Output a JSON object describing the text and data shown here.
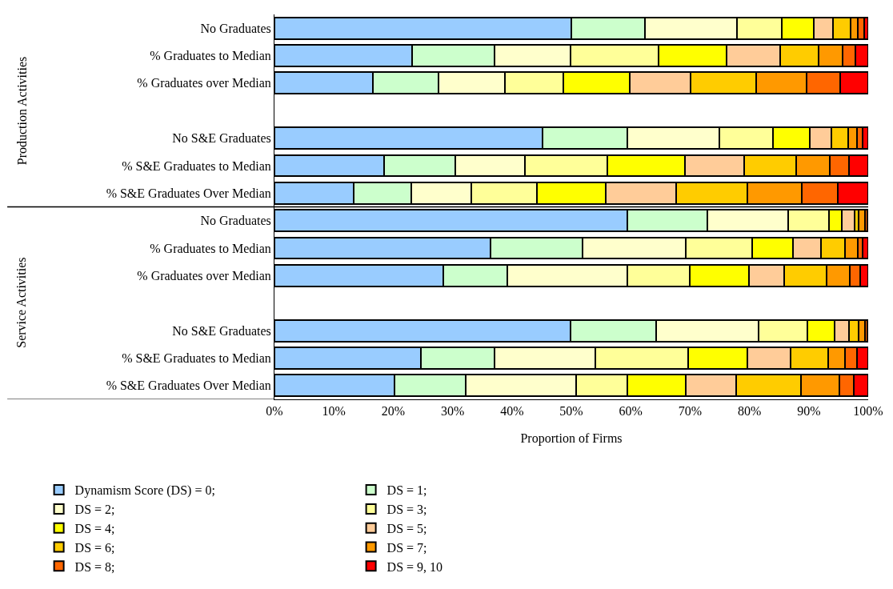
{
  "chart_data": {
    "type": "bar",
    "orientation": "horizontal",
    "stacked": true,
    "xlabel": "Proportion of Firms",
    "annotations": [
      "Production Activities",
      "Service Activities"
    ],
    "categories": [
      "No Graduates",
      "% Graduates to Median",
      "% Graduates over Median",
      null,
      "No S&E Graduates",
      "% S&E Graduates to Median",
      "% S&E Graduates Over Median",
      "No Graduates",
      "% Graduates to Median",
      "% Graduates over Median",
      null,
      "No S&E Graduates",
      "% S&E Graduates to Median",
      "% S&E Graduates Over Median"
    ],
    "xlim": [
      0,
      100
    ],
    "xticks": [
      {
        "value": 0,
        "label": "0%"
      },
      {
        "value": 10,
        "label": "10%"
      },
      {
        "value": 20,
        "label": "20%"
      },
      {
        "value": 30,
        "label": "30%"
      },
      {
        "value": 40,
        "label": "40%"
      },
      {
        "value": 50,
        "label": "50%"
      },
      {
        "value": 60,
        "label": "60%"
      },
      {
        "value": 70,
        "label": "70%"
      },
      {
        "value": 80,
        "label": "80%"
      },
      {
        "value": 90,
        "label": "90%"
      },
      {
        "value": 100,
        "label": "100%"
      }
    ],
    "legend": "bottom",
    "series": [
      {
        "name": "Dynamism Score (DS) = 0;",
        "color": "#99ccff",
        "values": [
          50.0,
          23.2,
          16.6,
          null,
          45.1,
          18.5,
          13.3,
          59.4,
          36.4,
          28.4,
          null,
          49.9,
          24.7,
          20.2
        ]
      },
      {
        "name": "DS = 1;",
        "color": "#ccffcc",
        "values": [
          12.4,
          13.9,
          11.0,
          null,
          14.3,
          11.9,
          9.7,
          13.5,
          15.5,
          10.8,
          null,
          14.4,
          12.3,
          12.0
        ]
      },
      {
        "name": "DS = 2;",
        "color": "#ffffcc",
        "values": [
          15.5,
          12.7,
          11.2,
          null,
          15.5,
          11.8,
          10.2,
          13.6,
          17.4,
          20.3,
          null,
          17.2,
          17.1,
          18.6
        ]
      },
      {
        "name": "DS = 3;",
        "color": "#ffff99",
        "values": [
          7.5,
          14.9,
          9.9,
          null,
          9.0,
          13.8,
          11.0,
          6.9,
          11.2,
          10.4,
          null,
          8.2,
          15.6,
          8.6
        ]
      },
      {
        "name": "DS = 4;",
        "color": "#ffff00",
        "values": [
          5.5,
          11.4,
          11.2,
          null,
          6.2,
          13.1,
          11.6,
          2.2,
          6.8,
          10.0,
          null,
          4.7,
          9.9,
          9.9
        ]
      },
      {
        "name": "DS = 5;",
        "color": "#ffcc99",
        "values": [
          3.2,
          9.1,
          10.2,
          null,
          3.7,
          10.0,
          11.9,
          2.1,
          4.8,
          5.9,
          null,
          2.4,
          7.3,
          8.5
        ]
      },
      {
        "name": "DS = 6;",
        "color": "#ffcc00",
        "values": [
          3.0,
          6.4,
          11.0,
          null,
          2.8,
          8.8,
          11.9,
          0.7,
          4.0,
          7.2,
          null,
          1.6,
          6.3,
          10.9
        ]
      },
      {
        "name": "DS = 7;",
        "color": "#ff9900",
        "values": [
          1.2,
          4.1,
          8.5,
          null,
          1.5,
          5.6,
          9.2,
          1.1,
          2.2,
          3.9,
          null,
          1.1,
          2.9,
          6.4
        ]
      },
      {
        "name": "DS = 8;",
        "color": "#ff6600",
        "values": [
          1.0,
          2.1,
          5.7,
          null,
          1.0,
          3.3,
          6.1,
          0.3,
          0.7,
          1.7,
          null,
          0.3,
          2.0,
          2.5
        ]
      },
      {
        "name": "DS = 9, 10",
        "color": "#ff0000",
        "values": [
          0.7,
          2.2,
          4.7,
          null,
          0.9,
          3.2,
          5.1,
          0.2,
          1.0,
          1.4,
          null,
          0.2,
          1.9,
          2.4
        ]
      }
    ]
  }
}
